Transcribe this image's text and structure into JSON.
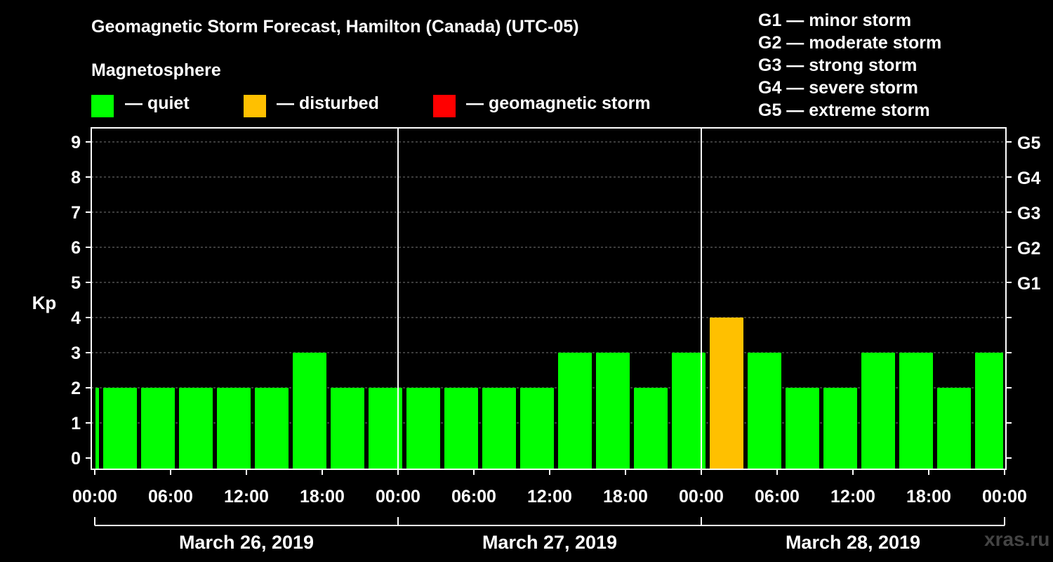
{
  "title": "Geomagnetic Storm Forecast, Hamilton (Canada) (UTC-05)",
  "legend": {
    "heading": "Magnetosphere",
    "items": [
      {
        "label": "— quiet",
        "color": "#00ff00"
      },
      {
        "label": "— disturbed",
        "color": "#ffc000"
      },
      {
        "label": "— geomagnetic storm",
        "color": "#ff0000"
      }
    ]
  },
  "storm_scale": [
    {
      "level": "G1",
      "text": "G1 — minor storm"
    },
    {
      "level": "G2",
      "text": "G2 — moderate storm"
    },
    {
      "level": "G3",
      "text": "G3 — strong storm"
    },
    {
      "level": "G4",
      "text": "G4 — severe storm"
    },
    {
      "level": "G5",
      "text": "G5 — extreme storm"
    }
  ],
  "watermark": "xras.ru",
  "chart_data": {
    "type": "bar",
    "ylabel": "Kp",
    "ylim": [
      0,
      9
    ],
    "yticks": [
      0,
      1,
      2,
      3,
      4,
      5,
      6,
      7,
      8,
      9
    ],
    "right_axis": [
      {
        "kp": 5,
        "label": "G1"
      },
      {
        "kp": 6,
        "label": "G2"
      },
      {
        "kp": 7,
        "label": "G3"
      },
      {
        "kp": 8,
        "label": "G4"
      },
      {
        "kp": 9,
        "label": "G5"
      }
    ],
    "grid": true,
    "xlim_hours": [
      0,
      72
    ],
    "xticks": [
      {
        "hour": 0,
        "label": "00:00"
      },
      {
        "hour": 6,
        "label": "06:00"
      },
      {
        "hour": 12,
        "label": "12:00"
      },
      {
        "hour": 18,
        "label": "18:00"
      },
      {
        "hour": 24,
        "label": "00:00"
      },
      {
        "hour": 30,
        "label": "06:00"
      },
      {
        "hour": 36,
        "label": "12:00"
      },
      {
        "hour": 42,
        "label": "18:00"
      },
      {
        "hour": 48,
        "label": "00:00"
      },
      {
        "hour": 54,
        "label": "06:00"
      },
      {
        "hour": 60,
        "label": "12:00"
      },
      {
        "hour": 66,
        "label": "18:00"
      },
      {
        "hour": 72,
        "label": "00:00"
      }
    ],
    "days": [
      {
        "label": "March 26, 2019",
        "start_hour": 0,
        "end_hour": 24
      },
      {
        "label": "March 27, 2019",
        "start_hour": 24,
        "end_hour": 48
      },
      {
        "label": "March 28, 2019",
        "start_hour": 48,
        "end_hour": 72
      }
    ],
    "bar_period_hours": 3,
    "first_bar_center_hour": -1,
    "values": [
      2,
      2,
      2,
      2,
      2,
      2,
      3,
      2,
      2,
      2,
      2,
      2,
      2,
      3,
      3,
      2,
      3,
      4,
      3,
      2,
      2,
      3,
      3,
      2,
      3
    ],
    "statuses": [
      "quiet",
      "quiet",
      "quiet",
      "quiet",
      "quiet",
      "quiet",
      "quiet",
      "quiet",
      "quiet",
      "quiet",
      "quiet",
      "quiet",
      "quiet",
      "quiet",
      "quiet",
      "quiet",
      "quiet",
      "disturbed",
      "quiet",
      "quiet",
      "quiet",
      "quiet",
      "quiet",
      "quiet",
      "quiet"
    ]
  }
}
